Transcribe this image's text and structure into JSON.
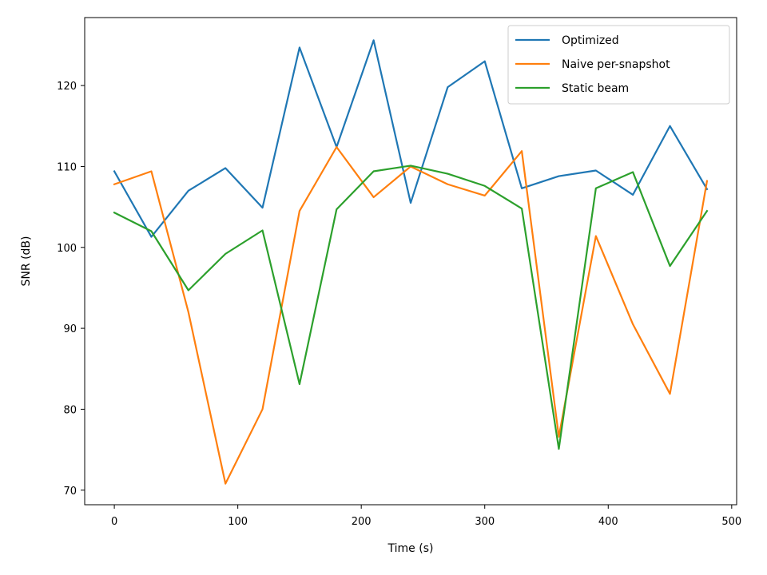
{
  "chart_data": {
    "type": "line",
    "title": "",
    "xlabel": "Time (s)",
    "ylabel": "SNR (dB)",
    "xlim": [
      -24,
      504
    ],
    "ylim": [
      68.2,
      128.4
    ],
    "xticks": [
      0,
      100,
      200,
      300,
      400,
      500
    ],
    "yticks": [
      70,
      80,
      90,
      100,
      110,
      120
    ],
    "grid": false,
    "legend_position": "top-right",
    "x": [
      0,
      30,
      60,
      90,
      120,
      150,
      180,
      210,
      240,
      270,
      300,
      330,
      360,
      390,
      420,
      450,
      480
    ],
    "series": [
      {
        "name": "Optimized",
        "color": "#1f77b4",
        "values": [
          109.4,
          101.3,
          107.0,
          109.8,
          104.9,
          124.7,
          112.4,
          125.6,
          105.5,
          119.8,
          123.0,
          107.3,
          108.8,
          109.5,
          106.5,
          115.0,
          107.2
        ]
      },
      {
        "name": "Naive per-snapshot",
        "color": "#ff7f0e",
        "values": [
          107.8,
          109.4,
          92.0,
          70.8,
          80.0,
          104.5,
          112.4,
          106.2,
          110.0,
          107.8,
          106.4,
          111.9,
          76.6,
          101.4,
          90.5,
          81.9,
          108.2
        ]
      },
      {
        "name": "Static beam",
        "color": "#2ca02c",
        "values": [
          104.3,
          102.0,
          94.7,
          99.2,
          102.1,
          83.1,
          104.7,
          109.4,
          110.1,
          109.1,
          107.6,
          104.8,
          75.1,
          107.3,
          109.3,
          97.7,
          104.5
        ]
      }
    ]
  }
}
